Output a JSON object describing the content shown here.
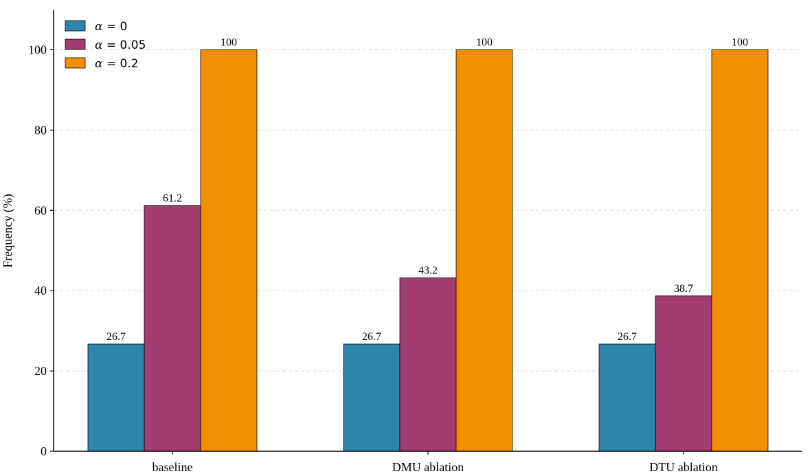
{
  "chart_data": {
    "type": "bar",
    "categories": [
      "baseline",
      "DMU ablation",
      "DTU ablation"
    ],
    "series": [
      {
        "name": "α = 0",
        "symbol": "α",
        "value_text": " = 0",
        "color": "#2e86ab",
        "values": [
          26.7,
          26.7,
          26.7
        ]
      },
      {
        "name": "α = 0.05",
        "symbol": "α",
        "value_text": " = 0.05",
        "color": "#a23b6f",
        "values": [
          61.2,
          43.2,
          38.7
        ]
      },
      {
        "name": "α = 0.2",
        "symbol": "α",
        "value_text": " = 0.2",
        "color": "#f18f01",
        "values": [
          100,
          100,
          100
        ]
      }
    ],
    "data_labels": [
      [
        "26.7",
        "26.7",
        "26.7"
      ],
      [
        "61.2",
        "43.2",
        "38.7"
      ],
      [
        "100",
        "100",
        "100"
      ]
    ],
    "title": "",
    "xlabel": "",
    "ylabel": "Frequency (%)",
    "ylim": [
      0,
      110
    ],
    "yticks": [
      0,
      20,
      40,
      60,
      80,
      100
    ],
    "grid": "y-dashed",
    "legend_position": "top-left"
  }
}
